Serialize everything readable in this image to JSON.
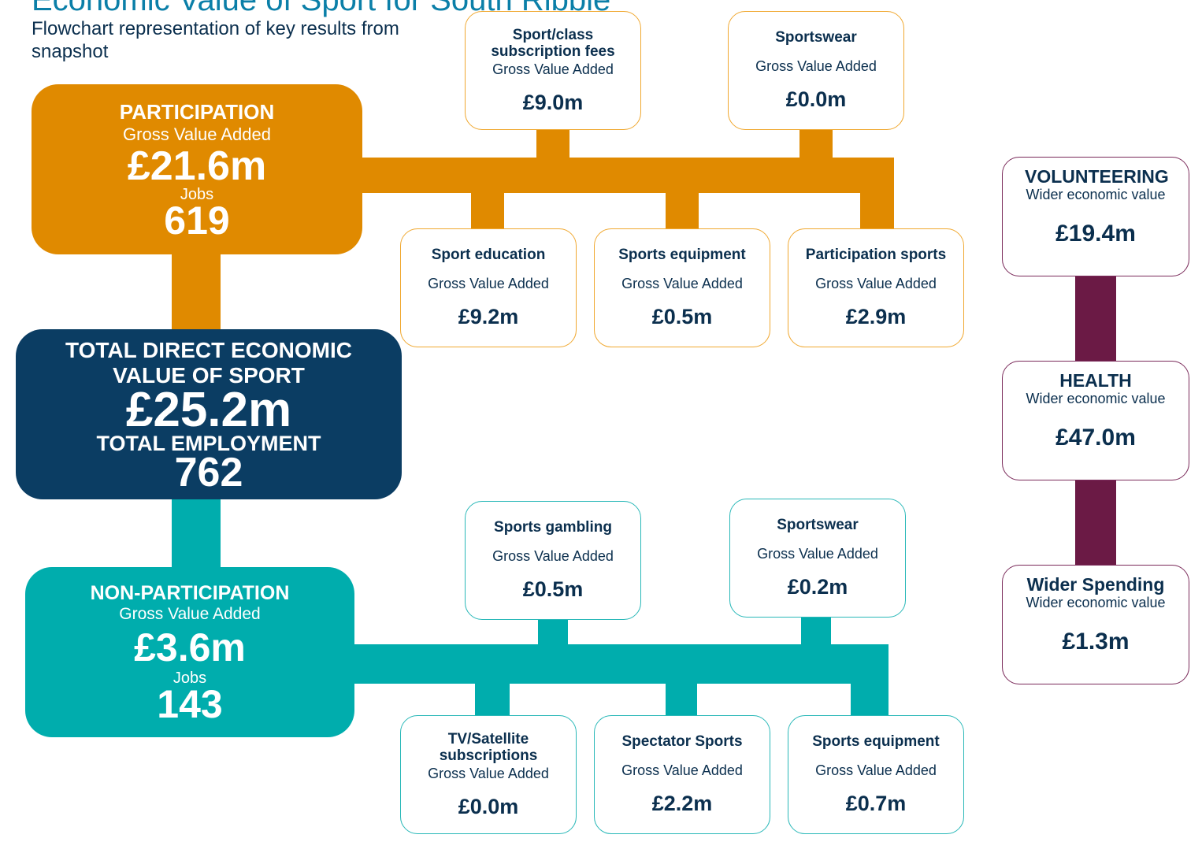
{
  "title": "Economic Value of Sport for South Ribble",
  "subtitle": "Flowchart representation of key results from snapshot",
  "participation": {
    "heading": "PARTICIPATION",
    "label": "Gross Value Added",
    "value": "£21.6m",
    "jobs_label": "Jobs",
    "jobs": "619"
  },
  "total": {
    "heading": "TOTAL DIRECT ECONOMIC VALUE OF SPORT",
    "value": "£25.2m",
    "employment_label": "TOTAL EMPLOYMENT",
    "employment": "762"
  },
  "non_participation": {
    "heading": "NON-PARTICIPATION",
    "label": "Gross Value Added",
    "value": "£3.6m",
    "jobs_label": "Jobs",
    "jobs": "143"
  },
  "participation_items": [
    {
      "name": "Sport/class subscription fees",
      "label": "Gross Value Added",
      "value": "£9.0m"
    },
    {
      "name": "Sportswear",
      "label": "Gross Value Added",
      "value": "£0.0m"
    },
    {
      "name": "Sport education",
      "label": "Gross Value Added",
      "value": "£9.2m"
    },
    {
      "name": "Sports equipment",
      "label": "Gross Value Added",
      "value": "£0.5m"
    },
    {
      "name": "Participation sports",
      "label": "Gross Value Added",
      "value": "£2.9m"
    }
  ],
  "non_participation_items": [
    {
      "name": "Sports gambling",
      "label": "Gross Value Added",
      "value": "£0.5m"
    },
    {
      "name": "Sportswear",
      "label": "Gross Value Added",
      "value": "£0.2m"
    },
    {
      "name": "TV/Satellite subscriptions",
      "label": "Gross Value Added",
      "value": "£0.0m"
    },
    {
      "name": "Spectator Sports",
      "label": "Gross Value Added",
      "value": "£2.2m"
    },
    {
      "name": "Sports equipment",
      "label": "Gross Value Added",
      "value": "£0.7m"
    }
  ],
  "wider": [
    {
      "name": "VOLUNTEERING",
      "label": "Wider economic value",
      "value": "£19.4m"
    },
    {
      "name": "HEALTH",
      "label": "Wider economic value",
      "value": "£47.0m"
    },
    {
      "name": "Wider Spending",
      "label": "Wider economic value",
      "value": "£1.3m"
    }
  ]
}
